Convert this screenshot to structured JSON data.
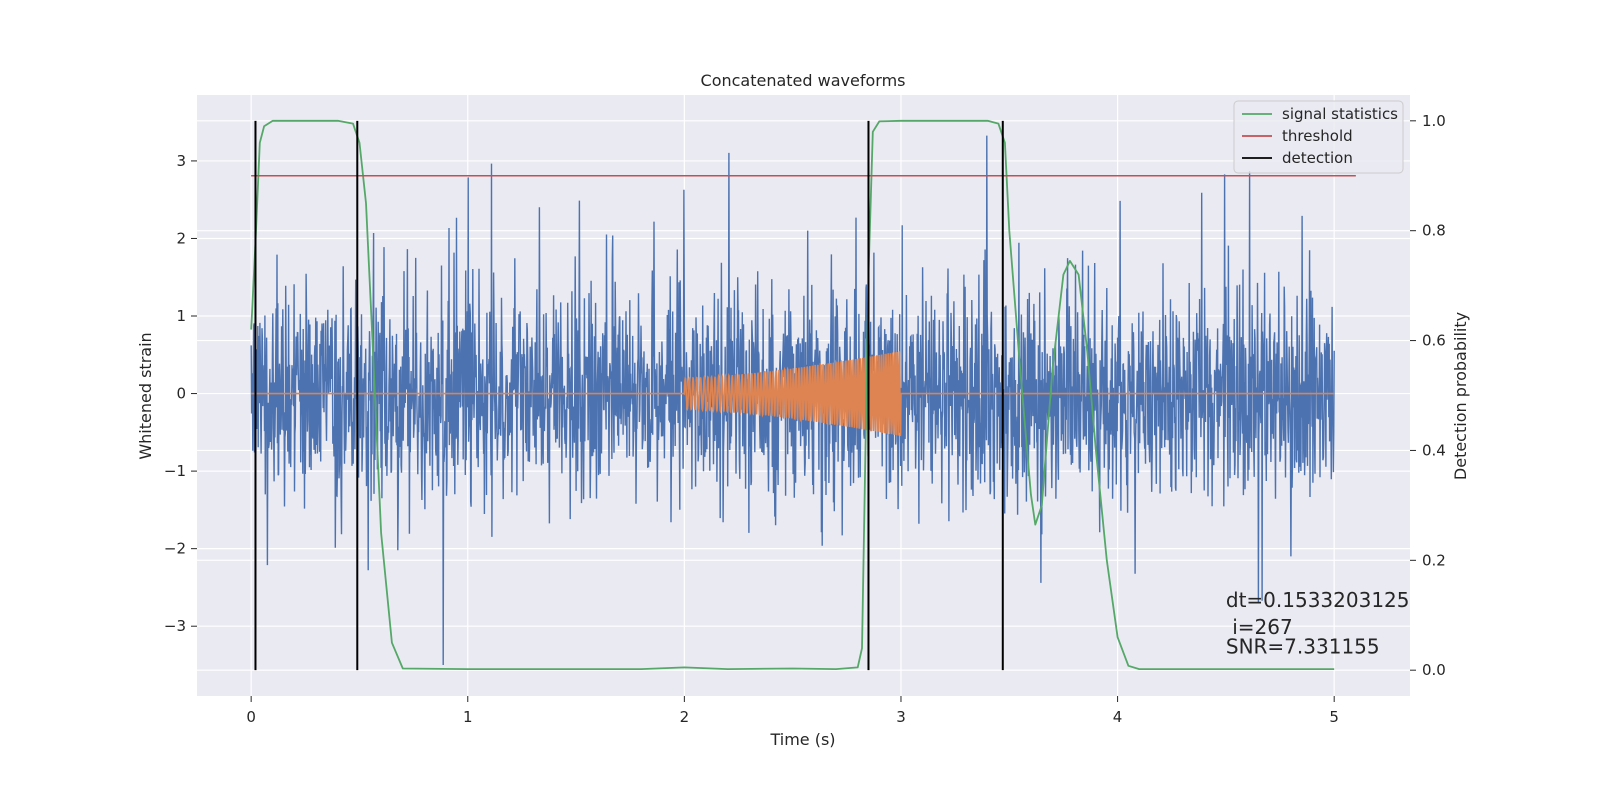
{
  "chart_data": {
    "type": "line",
    "title": "Concatenated waveforms",
    "xlabel": "Time (s)",
    "ylabel": "Whitened strain",
    "y2label": "Detection probability",
    "xlim": [
      -0.25,
      5.35
    ],
    "ylim": [
      -3.9,
      3.85
    ],
    "y2lim": [
      -0.047,
      1.047
    ],
    "xticks": [
      0,
      1,
      2,
      3,
      4,
      5
    ],
    "yticks": [
      -3,
      -2,
      -1,
      0,
      1,
      2,
      3
    ],
    "y2ticks": [
      0.0,
      0.2,
      0.4,
      0.6,
      0.8,
      1.0
    ],
    "xtick_labels": [
      "0",
      "1",
      "2",
      "3",
      "4",
      "5"
    ],
    "ytick_labels": [
      "−3",
      "−2",
      "−1",
      "0",
      "1",
      "2",
      "3"
    ],
    "y2tick_labels": [
      "0.0",
      "0.2",
      "0.4",
      "0.6",
      "0.8",
      "1.0"
    ],
    "grid": true,
    "legend_position": "top-right",
    "legend": [
      {
        "name": "signal statistics",
        "color": "#55a868"
      },
      {
        "name": "threshold",
        "color": "#c44e52"
      },
      {
        "name": "detection",
        "color": "#000000"
      }
    ],
    "series": [
      {
        "name": "whitened strain",
        "color": "#4c72b0",
        "axis": "left",
        "description": "noise spanning 0 to 5 s, amplitude roughly ±3.5"
      },
      {
        "name": "injected waveform",
        "color": "#dd8452",
        "axis": "left",
        "x_start": 2.0,
        "x_end": 3.0,
        "amp_start": 0.2,
        "amp_end": 0.55
      },
      {
        "name": "signal statistics",
        "color": "#55a868",
        "axis": "right",
        "x": [
          0.0,
          0.02,
          0.04,
          0.06,
          0.1,
          0.2,
          0.4,
          0.47,
          0.5,
          0.53,
          0.56,
          0.6,
          0.65,
          0.7,
          1.0,
          1.8,
          2.0,
          2.2,
          2.5,
          2.7,
          2.8,
          2.82,
          2.85,
          2.87,
          2.9,
          3.0,
          3.4,
          3.45,
          3.48,
          3.5,
          3.55,
          3.6,
          3.62,
          3.65,
          3.7,
          3.75,
          3.78,
          3.82,
          3.86,
          3.9,
          3.95,
          4.0,
          4.05,
          4.1,
          5.0
        ],
        "y": [
          0.62,
          0.78,
          0.96,
          0.99,
          1.0,
          1.0,
          1.0,
          0.995,
          0.96,
          0.85,
          0.6,
          0.25,
          0.05,
          0.003,
          0.002,
          0.002,
          0.005,
          0.002,
          0.003,
          0.002,
          0.005,
          0.04,
          0.72,
          0.98,
          0.999,
          1.0,
          1.0,
          0.995,
          0.96,
          0.8,
          0.55,
          0.32,
          0.265,
          0.3,
          0.55,
          0.72,
          0.745,
          0.72,
          0.58,
          0.4,
          0.2,
          0.06,
          0.008,
          0.002,
          0.002
        ]
      },
      {
        "name": "threshold",
        "color": "#c44e52",
        "axis": "right",
        "x": [
          0.0,
          5.1
        ],
        "y": [
          0.9,
          0.9
        ]
      },
      {
        "name": "detection",
        "color": "#000000",
        "axis": "right",
        "x": [
          0.02,
          0.49,
          2.85,
          3.47
        ],
        "y_range": [
          0.0,
          1.0
        ]
      }
    ],
    "annotation": {
      "lines": [
        "dt=0.1533203125",
        " i=267",
        "SNR=7.331155"
      ],
      "x": 4.5,
      "y": [
        -2.75,
        -3.1,
        -3.35
      ]
    },
    "colors": {
      "background": "#eaeaf2",
      "grid": "#ffffff",
      "strain": "#4c72b0",
      "waveform": "#dd8452",
      "statistic": "#55a868",
      "threshold": "#c44e52",
      "detection": "#000000"
    }
  }
}
